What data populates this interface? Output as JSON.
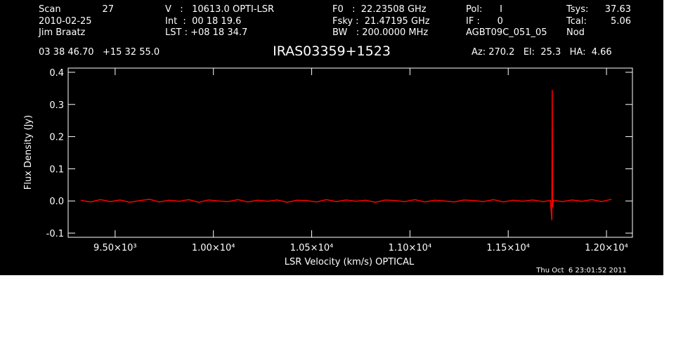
{
  "header": {
    "scan_label": "Scan",
    "scan": "27",
    "date": "2010-02-25",
    "observer": "Jim Braatz",
    "col2": [
      "V   :   10613.0 OPTI-LSR",
      "Int  :  00 18 19.6",
      "LST : +08 18 34.7"
    ],
    "col3": [
      "F0   :  22.23508 GHz",
      "Fsky :  21.47195 GHz",
      "BW   : 200.0000 MHz"
    ],
    "col4": [
      "Pol:      I",
      "IF :      0",
      "AGBT09C_051_05"
    ],
    "tsys_label": "Tsys:",
    "tsys": "37.63",
    "tcal_label": "Tcal:",
    "tcal": "5.06",
    "mode": "Nod",
    "coords": "03 38 46.70   +15 32 55.0",
    "pointing": "Az: 270.2   El:  25.3   HA:  4.66"
  },
  "timestamp": "Thu Oct  6 23:01:52 2011",
  "chart_data": {
    "type": "line",
    "title": "IRAS03359+1523",
    "x_label": "LSR Velocity (km/s) OPTICAL",
    "y_label": "Flux Density (Jy)",
    "xlim": [
      9261,
      12132
    ],
    "ylim": [
      -0.113,
      0.413
    ],
    "xticks": [
      {
        "value": 9500,
        "label": "9.50×10³"
      },
      {
        "value": 10000,
        "label": "1.00×10⁴"
      },
      {
        "value": 10500,
        "label": "1.05×10⁴"
      },
      {
        "value": 11000,
        "label": "1.10×10⁴"
      },
      {
        "value": 11500,
        "label": "1.15×10⁴"
      },
      {
        "value": 12000,
        "label": "1.20×10⁴"
      }
    ],
    "yticks": [
      -0.1,
      {
        "value": 0,
        "label": "0.0"
      },
      0.1,
      0.2,
      0.3,
      0.4
    ],
    "series": [
      {
        "color": "#ff0000",
        "x": [
          9325,
          9375,
          9425,
          9475,
          9525,
          9575,
          9625,
          9675,
          9725,
          9775,
          9825,
          9875,
          9925,
          9975,
          10025,
          10075,
          10125,
          10175,
          10225,
          10275,
          10325,
          10375,
          10425,
          10475,
          10525,
          10575,
          10625,
          10675,
          10725,
          10775,
          10825,
          10875,
          10925,
          10975,
          11025,
          11075,
          11125,
          11175,
          11225,
          11275,
          11325,
          11375,
          11425,
          11475,
          11525,
          11575,
          11625,
          11675,
          11715,
          11720,
          11722,
          11724,
          11726,
          11730,
          11775,
          11825,
          11875,
          11925,
          11975,
          12025
        ],
        "values": [
          0.002,
          -0.003,
          0.004,
          -0.002,
          0.003,
          -0.004,
          0.001,
          0.005,
          -0.003,
          0.002,
          -0.001,
          0.004,
          -0.004,
          0.003,
          0.0,
          -0.002,
          0.004,
          -0.003,
          0.002,
          -0.001,
          0.003,
          -0.004,
          0.002,
          0.001,
          -0.003,
          0.004,
          -0.002,
          0.003,
          -0.001,
          0.002,
          -0.004,
          0.003,
          0.001,
          -0.002,
          0.004,
          -0.003,
          0.002,
          0.0,
          -0.003,
          0.003,
          0.001,
          -0.002,
          0.004,
          -0.003,
          0.002,
          -0.001,
          0.003,
          -0.002,
          0.001,
          -0.045,
          -0.06,
          0.345,
          -0.02,
          0.002,
          -0.002,
          0.003,
          -0.001,
          0.004,
          -0.002,
          0.005
        ]
      }
    ]
  }
}
